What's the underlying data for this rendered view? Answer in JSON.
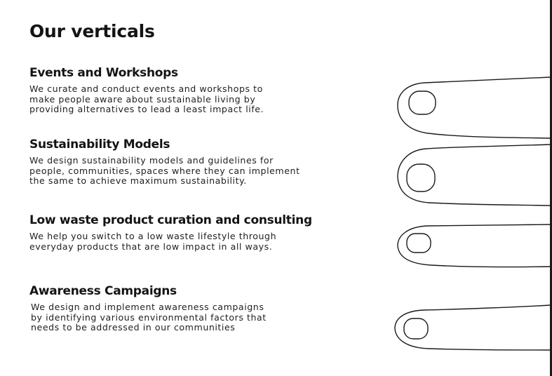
{
  "page": {
    "title": "Our verticals"
  },
  "verticals": [
    {
      "heading": "Events and Workshops",
      "description": "We curate and conduct events and workshops to\nmake people aware about sustainable living by\nproviding alternatives to lead a least impact life."
    },
    {
      "heading": "Sustainability Models",
      "description": "We design sustainability models and guidelines for\npeople, communities, spaces where they can implement\nthe same to achieve maximum sustainability."
    },
    {
      "heading": "Low waste product curation and consulting",
      "description": "We help you switch to a low waste lifestyle through\neveryday products that are low impact in all ways."
    },
    {
      "heading": "Awareness Campaigns",
      "description": "We design and implement awareness campaigns\nby identifying various environmental factors that\nneeds to be addressed in our communities"
    }
  ],
  "decorations": {
    "illustration": "finger-outline-icon",
    "stroke_color": "#1a1a1a"
  }
}
